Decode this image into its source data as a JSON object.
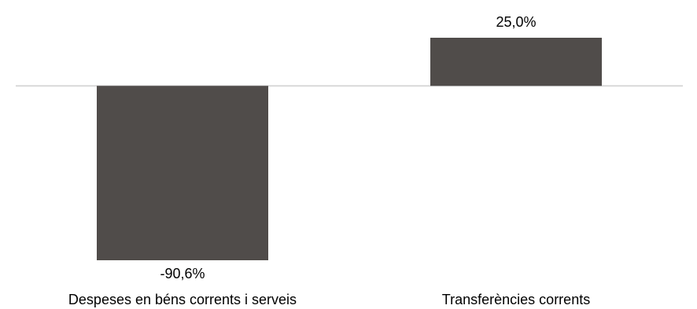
{
  "chart_data": {
    "type": "bar",
    "categories": [
      "Despeses en béns corrents i serveis",
      "Transferències corrents"
    ],
    "values": [
      -90.6,
      25.0
    ],
    "value_labels": [
      "-90,6%",
      "25,0%"
    ],
    "title": "",
    "xlabel": "",
    "ylabel": "",
    "ylim": [
      -90.6,
      25.0
    ],
    "grid": false,
    "legend": "none",
    "bar_color": "#504c4a",
    "baseline_color": "#d9d9d9"
  }
}
